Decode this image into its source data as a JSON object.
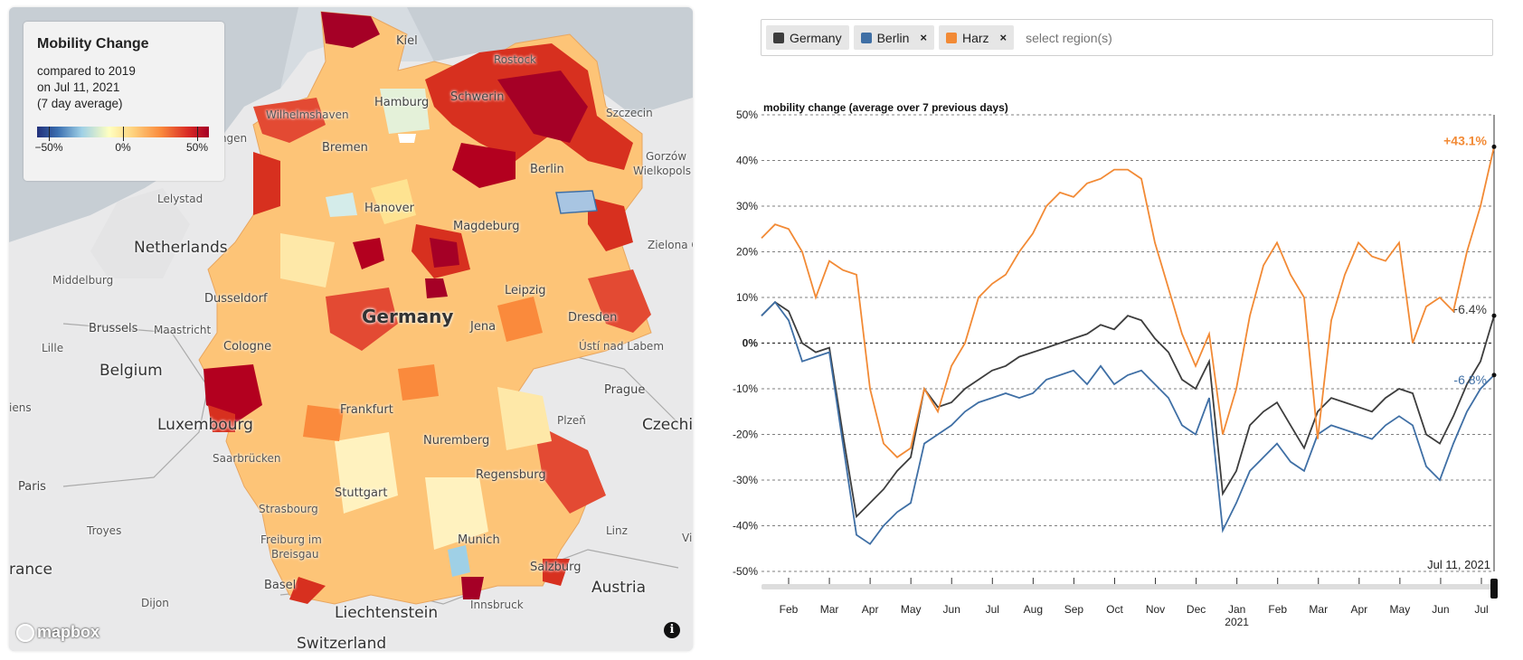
{
  "map": {
    "legend": {
      "title": "Mobility Change",
      "line1": "compared to 2019",
      "line2": "on Jul 11, 2021",
      "line3": "(7 day average)",
      "tick_min": "−50%",
      "tick_mid": "0%",
      "tick_max": "50%"
    },
    "attribution": "mapbox",
    "info_icon": "info-icon",
    "labels": {
      "kiel": "Kiel",
      "rostock": "Rostock",
      "hamburg": "Hamburg",
      "schwerin": "Schwerin",
      "szczecin": "Szczecin",
      "wilhelmshaven": "Wilhelmshaven",
      "groningen": "ningen",
      "bremen": "Bremen",
      "gorzow": "Gorzów",
      "wielkopols": "Wielkopols",
      "lelystad": "Lelystad",
      "berlin": "Berlin",
      "hanover": "Hanover",
      "magdeburg": "Magdeburg",
      "netherlands": "Netherlands",
      "zielona": "Zielona G",
      "middelburg": "Middelburg",
      "leipzig": "Leipzig",
      "dusseldorf": "Dusseldorf",
      "germany": "Germany",
      "brussels": "Brussels",
      "maastricht": "Maastricht",
      "lille": "Lille",
      "cologne": "Cologne",
      "jena": "Jena",
      "dresden": "Dresden",
      "belgium": "Belgium",
      "usti": "Ústí nad Labem",
      "iens": "iens",
      "prague": "Prague",
      "frankfurt": "Frankfurt",
      "luxembourg": "Luxembourg",
      "plzen": "Plzeň",
      "czechi": "Czechi",
      "nuremberg": "Nuremberg",
      "saarbrucken": "Saarbrücken",
      "regensburg": "Regensburg",
      "paris": "Paris",
      "stuttgart": "Stuttgart",
      "strasbourg": "Strasbourg",
      "troyes": "Troyes",
      "linz": "Linz",
      "freiburg": "Freiburg im",
      "breisgau": "Breisgau",
      "munich": "Munich",
      "rance": "rance",
      "salzburg": "Salzburg",
      "basel": "Basel",
      "austria": "Austria",
      "dijon": "Dijon",
      "liechtenstein": "Liechtenstein",
      "innsbruck": "Innsbruck",
      "switzerland": "Switzerland",
      "vi": "Vi"
    }
  },
  "selector": {
    "chips": [
      {
        "label": "Germany",
        "color": "#3d3d3d",
        "removable": false
      },
      {
        "label": "Berlin",
        "color": "#3f6fa5",
        "removable": true
      },
      {
        "label": "Harz",
        "color": "#f28a35",
        "removable": true
      }
    ],
    "remove_glyph": "×",
    "placeholder": "select region(s)"
  },
  "chart_data": {
    "type": "line",
    "title": "mobility change (average over 7 previous days)",
    "ylim": [
      -50,
      50
    ],
    "y_ticks": [
      "50%",
      "40%",
      "30%",
      "20%",
      "10%",
      "0%",
      "-10%",
      "-20%",
      "-30%",
      "-40%",
      "-50%"
    ],
    "x_ticks": [
      "Feb",
      "Mar",
      "Apr",
      "May",
      "Jun",
      "Jul",
      "Aug",
      "Sep",
      "Oct",
      "Nov",
      "Dec",
      "Jan",
      "Feb",
      "Mar",
      "Apr",
      "May",
      "Jun",
      "Jul"
    ],
    "x_year_label": "2021",
    "current_date_label": "Jul 11, 2021",
    "series": [
      {
        "name": "Germany",
        "color": "#3d3d3d",
        "end_label": "+6.4%",
        "values": [
          6,
          9,
          7,
          0,
          -2,
          -1,
          -20,
          -38,
          -35,
          -32,
          -28,
          -25,
          -10,
          -14,
          -13,
          -10,
          -8,
          -6,
          -5,
          -3,
          -2,
          -1,
          0,
          1,
          2,
          4,
          3,
          6,
          5,
          1,
          -2,
          -8,
          -10,
          -4,
          -33,
          -28,
          -18,
          -15,
          -13,
          -18,
          -23,
          -15,
          -12,
          -13,
          -14,
          -15,
          -12,
          -10,
          -11,
          -20,
          -22,
          -16,
          -9,
          -4,
          6
        ]
      },
      {
        "name": "Berlin",
        "color": "#3f6fa5",
        "end_label": "-6.8%",
        "values": [
          6,
          9,
          5,
          -4,
          -3,
          -2,
          -22,
          -42,
          -44,
          -40,
          -37,
          -35,
          -22,
          -20,
          -18,
          -15,
          -13,
          -12,
          -11,
          -12,
          -11,
          -8,
          -7,
          -6,
          -9,
          -5,
          -9,
          -7,
          -6,
          -9,
          -12,
          -18,
          -20,
          -12,
          -41,
          -35,
          -28,
          -25,
          -22,
          -26,
          -28,
          -20,
          -18,
          -19,
          -20,
          -21,
          -18,
          -16,
          -18,
          -27,
          -30,
          -22,
          -15,
          -10,
          -7
        ]
      },
      {
        "name": "Harz",
        "color": "#f28a35",
        "end_label": "+43.1%",
        "values": [
          23,
          26,
          25,
          20,
          10,
          18,
          16,
          15,
          -10,
          -22,
          -25,
          -23,
          -10,
          -15,
          -5,
          0,
          10,
          13,
          15,
          20,
          24,
          30,
          33,
          32,
          35,
          36,
          38,
          38,
          36,
          22,
          12,
          2,
          -5,
          2,
          -20,
          -10,
          6,
          17,
          22,
          15,
          10,
          -21,
          5,
          15,
          22,
          19,
          18,
          22,
          0,
          8,
          10,
          7,
          20,
          30,
          43
        ]
      }
    ]
  }
}
